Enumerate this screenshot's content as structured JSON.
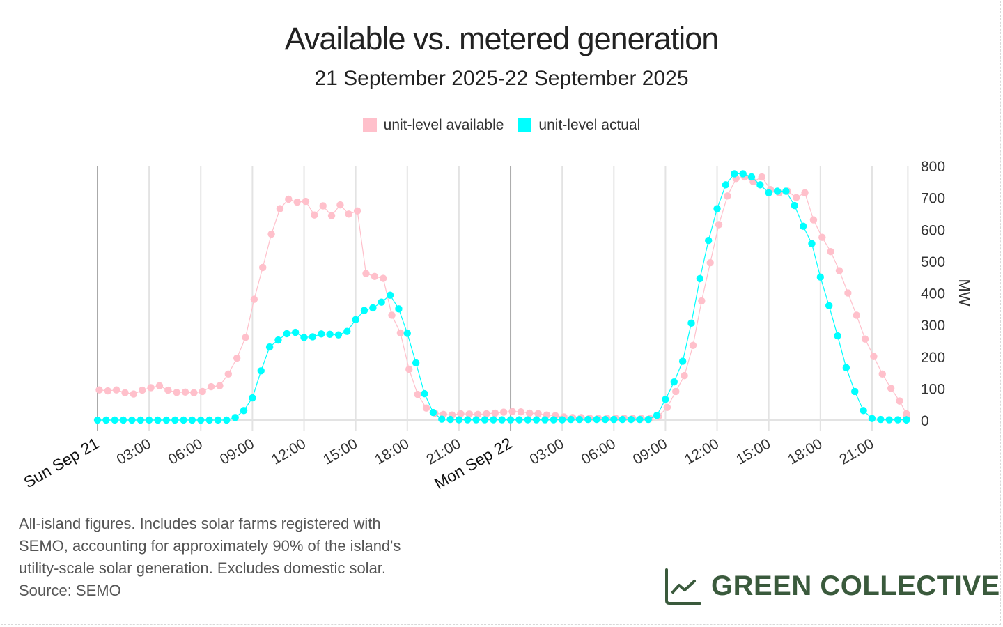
{
  "chart_data": {
    "type": "line",
    "title": "Available vs. metered generation",
    "subtitle": "21 September 2025-22 September 2025",
    "xlabel": "",
    "ylabel": "MW",
    "ylim": [
      0,
      800
    ],
    "yticks": [
      0,
      100,
      200,
      300,
      400,
      500,
      600,
      700,
      800
    ],
    "xlim_hours": [
      0,
      47
    ],
    "xticks": [
      {
        "hour": 0,
        "label": "Sun Sep 21",
        "major": true
      },
      {
        "hour": 3,
        "label": "03:00"
      },
      {
        "hour": 6,
        "label": "06:00"
      },
      {
        "hour": 9,
        "label": "09:00"
      },
      {
        "hour": 12,
        "label": "12:00"
      },
      {
        "hour": 15,
        "label": "15:00"
      },
      {
        "hour": 18,
        "label": "18:00"
      },
      {
        "hour": 21,
        "label": "21:00"
      },
      {
        "hour": 24,
        "label": "Mon Sep 22",
        "major": true
      },
      {
        "hour": 27,
        "label": "03:00"
      },
      {
        "hour": 30,
        "label": "06:00"
      },
      {
        "hour": 33,
        "label": "09:00"
      },
      {
        "hour": 36,
        "label": "12:00"
      },
      {
        "hour": 39,
        "label": "15:00"
      },
      {
        "hour": 42,
        "label": "18:00"
      },
      {
        "hour": 45,
        "label": "21:00"
      }
    ],
    "grid": true,
    "legend_position": "top-center",
    "series": [
      {
        "name": "unit-level available",
        "color": "#ffc0cb",
        "start_hour": 0.1,
        "step_hours": 0.5,
        "values": [
          95,
          92,
          95,
          86,
          82,
          94,
          102,
          108,
          94,
          87,
          88,
          86,
          90,
          105,
          108,
          145,
          195,
          260,
          380,
          480,
          585,
          665,
          695,
          686,
          688,
          645,
          674,
          643,
          677,
          648,
          658,
          461,
          452,
          446,
          330,
          274,
          160,
          81,
          38,
          22,
          18,
          16,
          20,
          19,
          18,
          20,
          22,
          25,
          27,
          26,
          22,
          20,
          16,
          14,
          10,
          8,
          8,
          6,
          6,
          6,
          6,
          6,
          5,
          5,
          5,
          12,
          40,
          90,
          140,
          235,
          375,
          495,
          615,
          705,
          760,
          765,
          750,
          765,
          725,
          715,
          720,
          700,
          715,
          630,
          575,
          530,
          470,
          400,
          330,
          255,
          200,
          145,
          100,
          60,
          20,
          10,
          8,
          8,
          8,
          6,
          6,
          5
        ]
      },
      {
        "name": "unit-level actual",
        "color": "#00ffff",
        "start_hour": 0,
        "step_hours": 0.5,
        "values": [
          0,
          0,
          0,
          0,
          0,
          0,
          0,
          0,
          0,
          0,
          0,
          0,
          0,
          0,
          0,
          0,
          8,
          30,
          70,
          155,
          230,
          252,
          272,
          276,
          260,
          262,
          271,
          270,
          268,
          279,
          316,
          345,
          353,
          371,
          393,
          350,
          273,
          180,
          83,
          24,
          3,
          2,
          1,
          1,
          1,
          1,
          1,
          1,
          1,
          1,
          1,
          1,
          1,
          1,
          1,
          2,
          2,
          2,
          2,
          2,
          2,
          2,
          2,
          2,
          2,
          15,
          65,
          120,
          185,
          305,
          445,
          565,
          665,
          740,
          775,
          775,
          765,
          740,
          715,
          720,
          720,
          675,
          610,
          555,
          450,
          360,
          265,
          165,
          90,
          30,
          5,
          2,
          1,
          1,
          1,
          1,
          1,
          1,
          1,
          1,
          1
        ]
      }
    ]
  },
  "footnote": {
    "lines": [
      "All-island figures. Includes solar farms registered with",
      "SEMO, accounting for approximately 90% of the island's",
      "utility-scale solar generation. Excludes domestic solar.",
      "Source: SEMO"
    ]
  },
  "brand": {
    "name": "GREEN COLLECTIVE",
    "icon": "line-chart-icon",
    "color": "#3a5a3c"
  }
}
